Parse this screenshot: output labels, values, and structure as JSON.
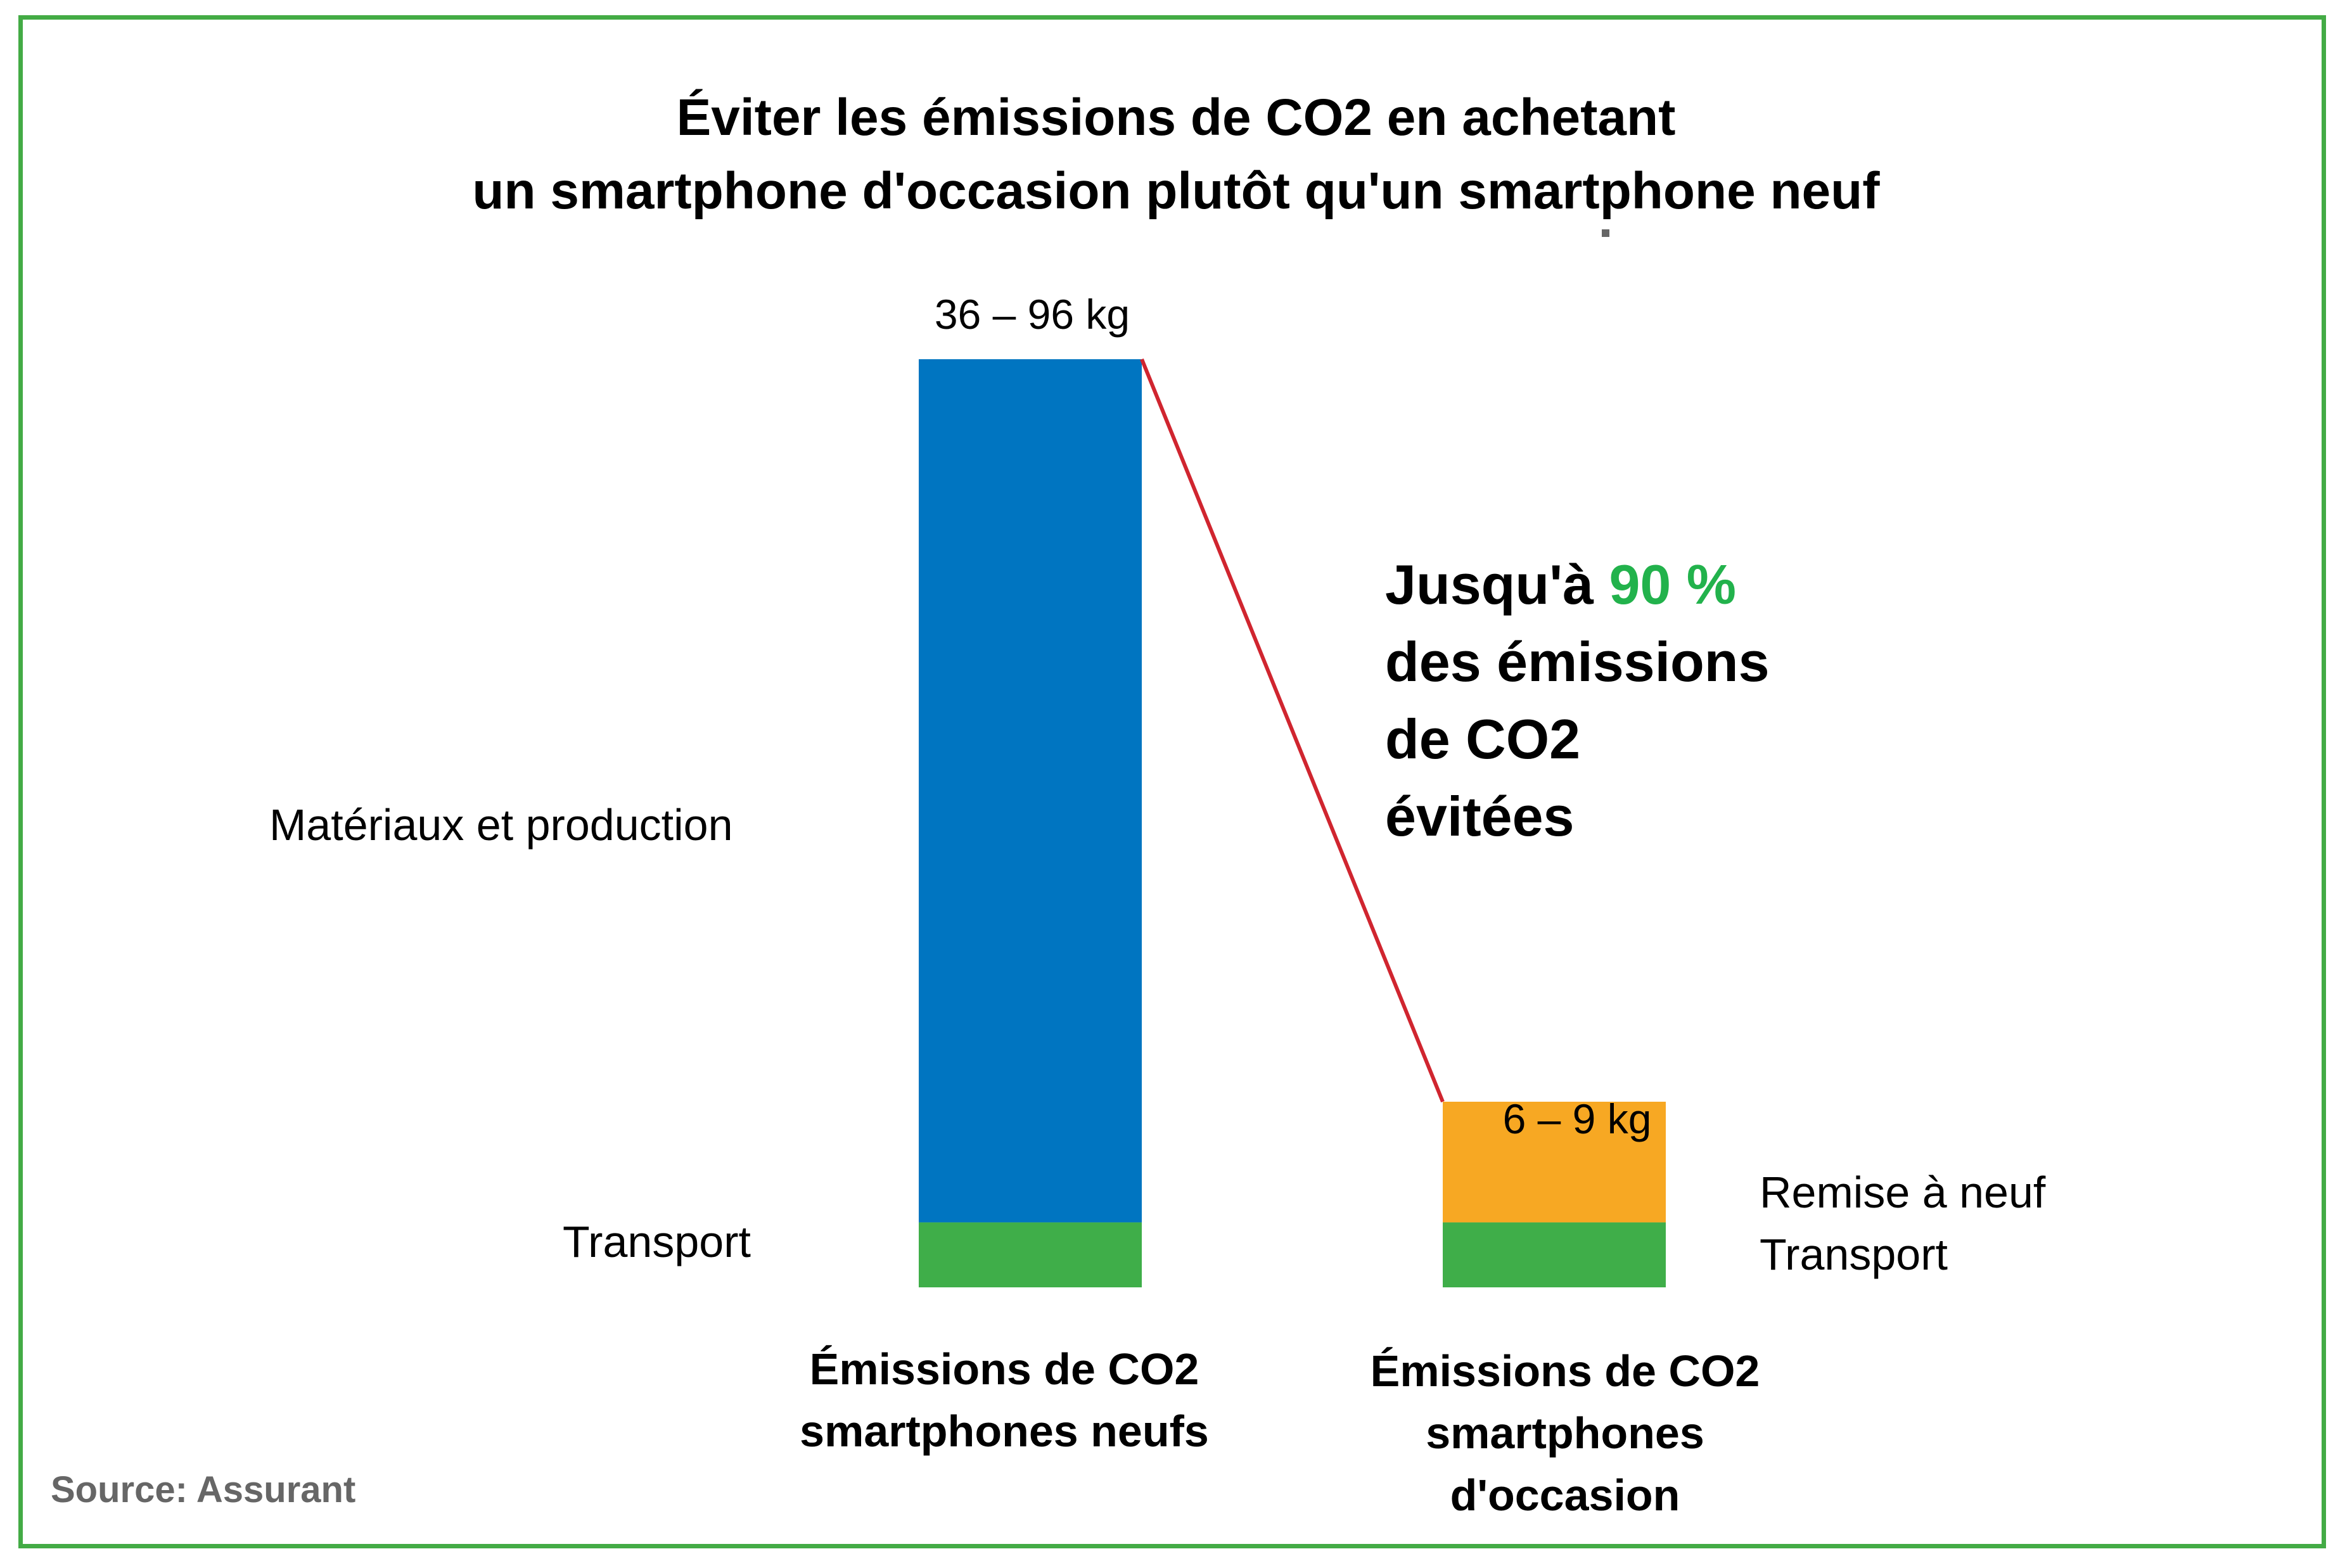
{
  "chart_data": {
    "type": "bar",
    "stacked": true,
    "title": "Éviter les émissions de CO2 en achetant",
    "subtitle": "un smartphone d'occasion plutôt qu'un smartphone neuf",
    "categories": [
      "Émissions de CO2 smartphones neufs",
      "Émissions de CO2 smartphones d'occasion"
    ],
    "category_lines": [
      [
        "Émissions de CO2",
        "smartphones neufs"
      ],
      [
        "Émissions de CO2",
        "smartphones",
        "d'occasion"
      ]
    ],
    "bar_totals_text": [
      "36 – 96 kg",
      "6 – 9 kg"
    ],
    "series": [
      {
        "name": "Transport",
        "values": [
          7,
          7
        ],
        "color": "#3fae49"
      },
      {
        "name": "Matériaux et production",
        "values": [
          93,
          0
        ],
        "color": "#0075c1"
      },
      {
        "name": "Remise à neuf",
        "values": [
          0,
          13
        ],
        "color": "#f7a823"
      }
    ],
    "ylim": [
      0,
      100
    ],
    "connector_color": "#d0252f",
    "callout": {
      "prefix": "Jusqu'à ",
      "highlight": "90 %",
      "highlight_color": "#22b24c",
      "lines": [
        "des émissions",
        "de CO2",
        "évitées"
      ]
    },
    "segment_labels_left": [
      "Matériaux et production",
      "Transport"
    ],
    "segment_labels_right": [
      "Remise à neuf",
      "Transport"
    ]
  },
  "source": "Source: Assurant",
  "colors": {
    "frame": "#43ab45"
  }
}
